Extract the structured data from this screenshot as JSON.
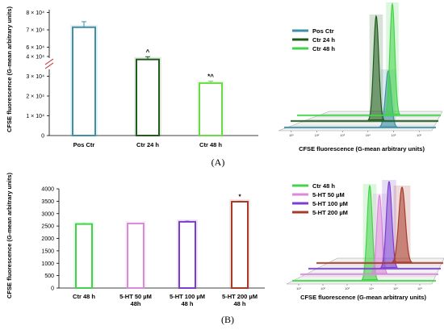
{
  "panels": {
    "a": "(A)",
    "b": "(B)"
  },
  "chart_data": [
    {
      "type": "bar",
      "panel": "A",
      "ylabel": "CFSE fluorescence (G-mean arbitrary units)",
      "axis_break": true,
      "yticks": [
        "0",
        "1 × 10⁴",
        "2 × 10⁴",
        "3 × 10⁴",
        "4 × 10⁴",
        "6 × 10⁴",
        "7 × 10⁴",
        "8 × 10⁴"
      ],
      "categories": [
        "Pos Ctr",
        "Ctr 24 h",
        "Ctr 48 h"
      ],
      "values": [
        71500,
        38500,
        26500
      ],
      "errors": [
        3200,
        1400,
        1000
      ],
      "colors": [
        "#3f8fa5",
        "#1f5c1c",
        "#6cd94a"
      ],
      "annotations": [
        "",
        "^",
        "*^"
      ]
    },
    {
      "type": "histogram_overlay",
      "panel": "A",
      "xlabel": "CFSE fluorescence (G-mean arbitrary units)",
      "xticks": [
        "10¹",
        "10²",
        "10³",
        "10⁴",
        "10⁵",
        "10⁶"
      ],
      "legend": [
        {
          "label": "Pos Ctr",
          "color": "#3f8fa5"
        },
        {
          "label": "Ctr 24 h",
          "color": "#1f5c1c"
        },
        {
          "label": "Ctr 48 h",
          "color": "#43d34a"
        }
      ],
      "legend_position": "top-left"
    },
    {
      "type": "bar",
      "panel": "B",
      "ylabel": "CFSE fluorescence (G-mean arbitrary units)",
      "ylim": [
        0,
        4000
      ],
      "yticks": [
        "0",
        "500",
        "1000",
        "1500",
        "2000",
        "2500",
        "3000",
        "3500",
        "4000"
      ],
      "categories": [
        "Ctr 48 h",
        "5-HT 50 µM 48h",
        "5-HT 100 µM 48 h",
        "5-HT 200 µM 48 h"
      ],
      "category_lines": [
        [
          "Ctr 48 h"
        ],
        [
          "5-HT 50 µM",
          "48h"
        ],
        [
          "5-HT 100 µM",
          "48 h"
        ],
        [
          "5-HT 200 µM",
          "48 h"
        ]
      ],
      "values": [
        2580,
        2600,
        2670,
        3480
      ],
      "errors": [
        20,
        15,
        25,
        20
      ],
      "colors": [
        "#43d34a",
        "#d98ad9",
        "#7b3fcf",
        "#a83a2a"
      ],
      "annotations": [
        "",
        "",
        "",
        "*"
      ]
    },
    {
      "type": "histogram_overlay",
      "panel": "B",
      "xlabel": "CFSE fluorescence (G-mean arbitrary units)",
      "xticks": [
        "10¹",
        "10²",
        "10³",
        "10⁴",
        "10⁵",
        "10⁶"
      ],
      "legend": [
        {
          "label": "Ctr 48 h",
          "color": "#43d34a"
        },
        {
          "label": "5-HT 50 µM",
          "color": "#d98ad9"
        },
        {
          "label": "5-HT 100 µM",
          "color": "#7b3fcf"
        },
        {
          "label": "5-HT 200 µM",
          "color": "#a83a2a"
        }
      ],
      "legend_position": "top-left"
    }
  ]
}
